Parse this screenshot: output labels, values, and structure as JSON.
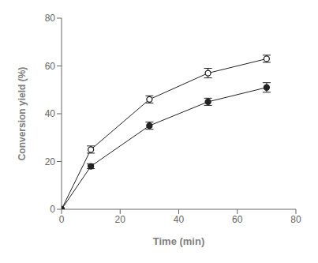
{
  "chart_data": {
    "type": "line",
    "xlabel": "Time (min)",
    "ylabel": "Conversion yield (%)",
    "x": [
      0,
      10,
      30,
      50,
      70
    ],
    "series": [
      {
        "color": "#222222",
        "marker": "open_circle",
        "line_style": "solid",
        "values": [
          0,
          25,
          46,
          57,
          63
        ],
        "errors": [
          0,
          1.5,
          1.5,
          2.0,
          1.5
        ]
      },
      {
        "color": "#222222",
        "marker": "circle",
        "line_style": "solid",
        "values": [
          0,
          18,
          35,
          45,
          51
        ],
        "errors": [
          0,
          1.0,
          1.5,
          1.5,
          2.0
        ]
      }
    ],
    "xlim": [
      0,
      80
    ],
    "ylim": [
      0,
      80
    ],
    "xticks": [
      0,
      20,
      40,
      60,
      80
    ],
    "yticks": [
      0,
      20,
      40,
      60,
      80
    ],
    "grid": false
  }
}
